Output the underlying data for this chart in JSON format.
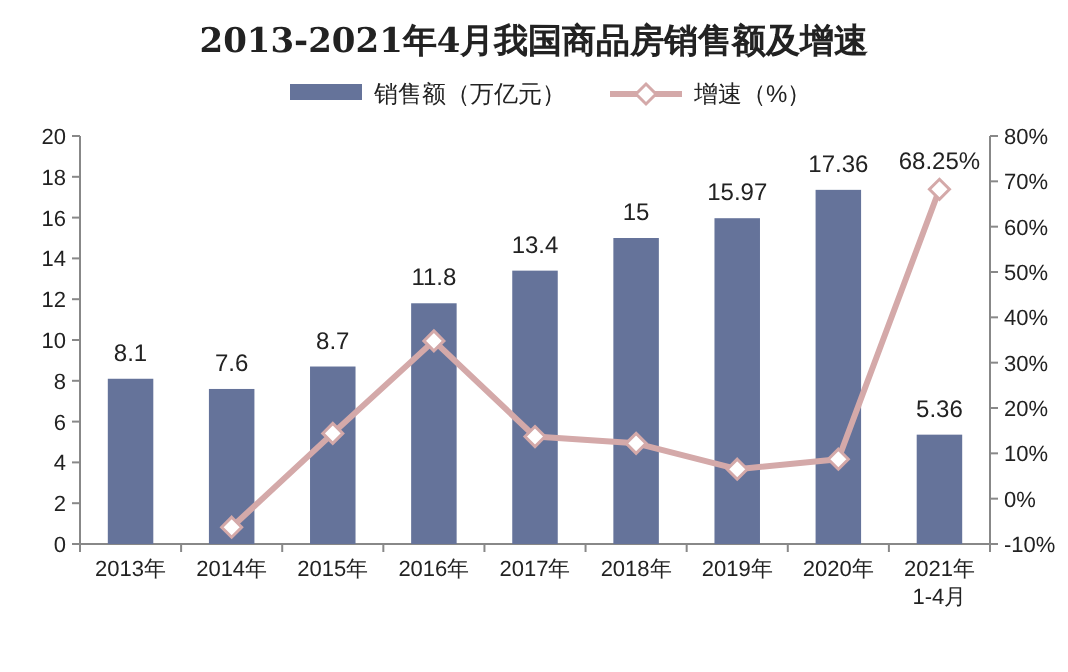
{
  "chart_data": {
    "type": "bar",
    "title": "2013-2021年4月我国商品房销售额及增速",
    "categories": [
      "2013年",
      "2014年",
      "2015年",
      "2016年",
      "2017年",
      "2018年",
      "2019年",
      "2020年",
      "2021年\n1-4月"
    ],
    "series": [
      {
        "name": "销售额（万亿元）",
        "color": "#65739a",
        "values": [
          8.1,
          7.6,
          8.7,
          11.8,
          13.4,
          15,
          15.97,
          17.36,
          5.36
        ],
        "value_labels": [
          "8.1",
          "7.6",
          "8.7",
          "11.8",
          "13.4",
          "15",
          "15.97",
          "17.36",
          "5.36"
        ]
      },
      {
        "name": "增速（%）",
        "type": "line",
        "axis": "y2",
        "color": "#d4a9a9",
        "marker": "diamond",
        "values": [
          null,
          -6.3,
          14.4,
          34.8,
          13.7,
          12.2,
          6.5,
          8.7,
          68.25
        ],
        "value_labels": [
          null,
          null,
          null,
          null,
          null,
          null,
          null,
          null,
          "68.25%"
        ]
      }
    ],
    "ylim": [
      0,
      20
    ],
    "yticks": [
      0,
      2,
      4,
      6,
      8,
      10,
      12,
      14,
      16,
      18,
      20
    ],
    "y2lim": [
      -10,
      80
    ],
    "y2ticks": [
      {
        "value": -10,
        "label": "-10%"
      },
      {
        "value": 0,
        "label": "0%"
      },
      {
        "value": 10,
        "label": "10%"
      },
      {
        "value": 20,
        "label": "20%"
      },
      {
        "value": 30,
        "label": "30%"
      },
      {
        "value": 40,
        "label": "40%"
      },
      {
        "value": 50,
        "label": "50%"
      },
      {
        "value": 60,
        "label": "60%"
      },
      {
        "value": 70,
        "label": "70%"
      },
      {
        "value": 80,
        "label": "80%"
      }
    ],
    "grid": false,
    "legend": "top"
  }
}
